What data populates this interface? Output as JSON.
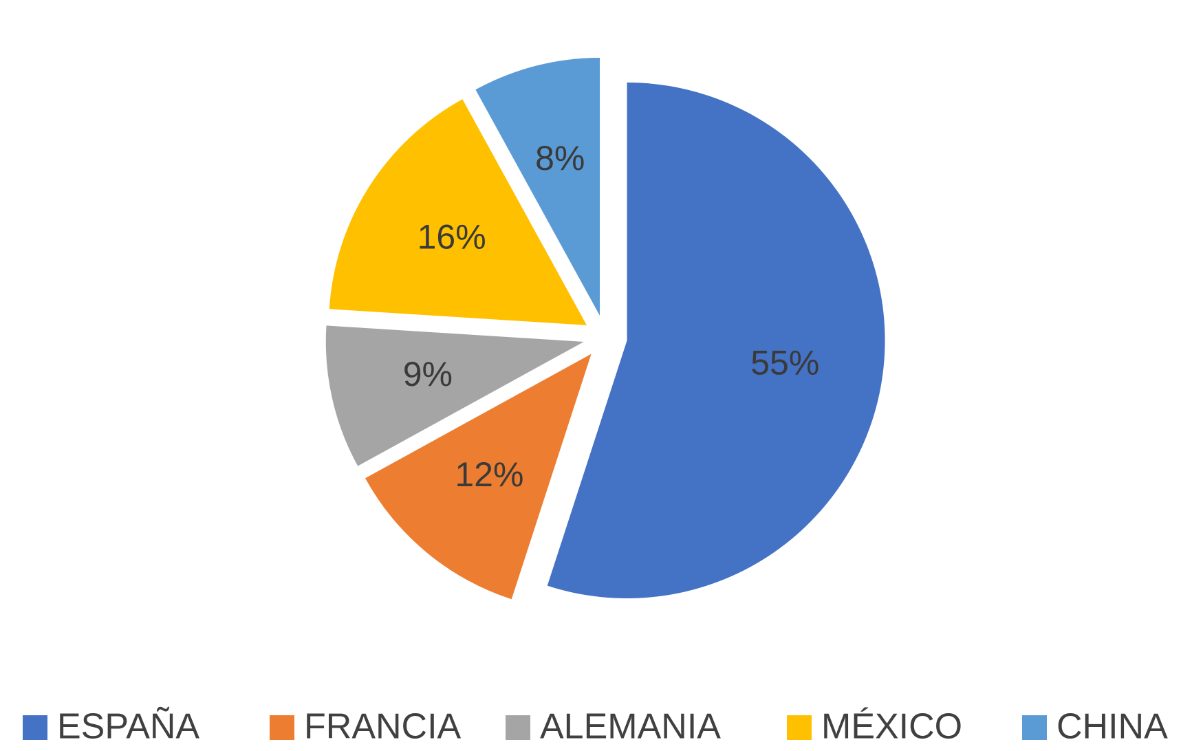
{
  "chart_data": {
    "type": "pie",
    "categories": [
      "ESPAÑA",
      "FRANCIA",
      "ALEMANIA",
      "MÉXICO",
      "CHINA"
    ],
    "values": [
      55,
      12,
      9,
      16,
      8
    ],
    "value_labels": [
      "55%",
      "12%",
      "9%",
      "16%",
      "8%"
    ],
    "colors": [
      "#4472c4",
      "#ed7d31",
      "#a5a5a5",
      "#ffc000",
      "#5b9bd5"
    ],
    "legend": "bottom",
    "exploded": true
  }
}
